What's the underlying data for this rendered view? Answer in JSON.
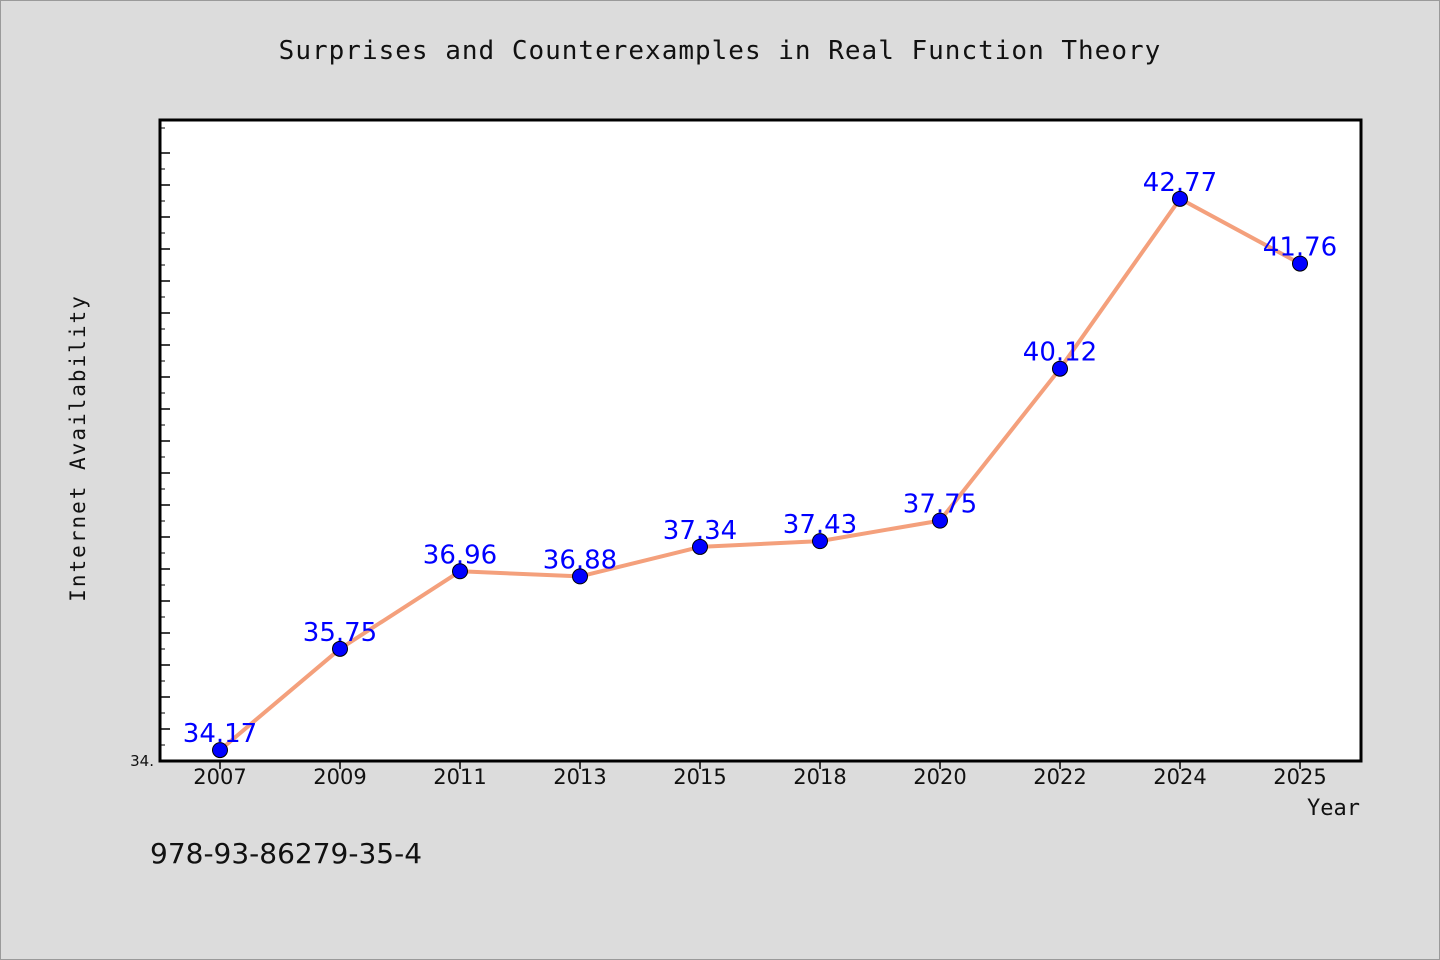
{
  "isbn_text": "978-93-86279-35-4",
  "chart_data": {
    "type": "line",
    "title": "Surprises and Counterexamples in Real Function Theory",
    "xlabel": "Year",
    "ylabel": "Internet Availability",
    "categories": [
      "2007",
      "2009",
      "2011",
      "2013",
      "2015",
      "2018",
      "2020",
      "2022",
      "2024",
      "2025"
    ],
    "series": [
      {
        "values": [
          34.17,
          35.75,
          36.96,
          36.88,
          37.34,
          37.43,
          37.75,
          40.12,
          42.77,
          41.76
        ],
        "data_labels": [
          "34.17",
          "35.75",
          "36.96",
          "36.88",
          "37.34",
          "37.43",
          "37.75",
          "40.12",
          "42.77",
          "41.76"
        ]
      }
    ],
    "ylim": [
      34.0,
      44.0
    ],
    "y_tick_labels": [
      "34."
    ],
    "grid": false,
    "line_color": "#f4a07c",
    "marker_color": "#0000ff",
    "label_color": "#0000ff",
    "axis_color": "#000000",
    "plot_background": "#ffffff",
    "page_background": "#dcdcdc"
  }
}
